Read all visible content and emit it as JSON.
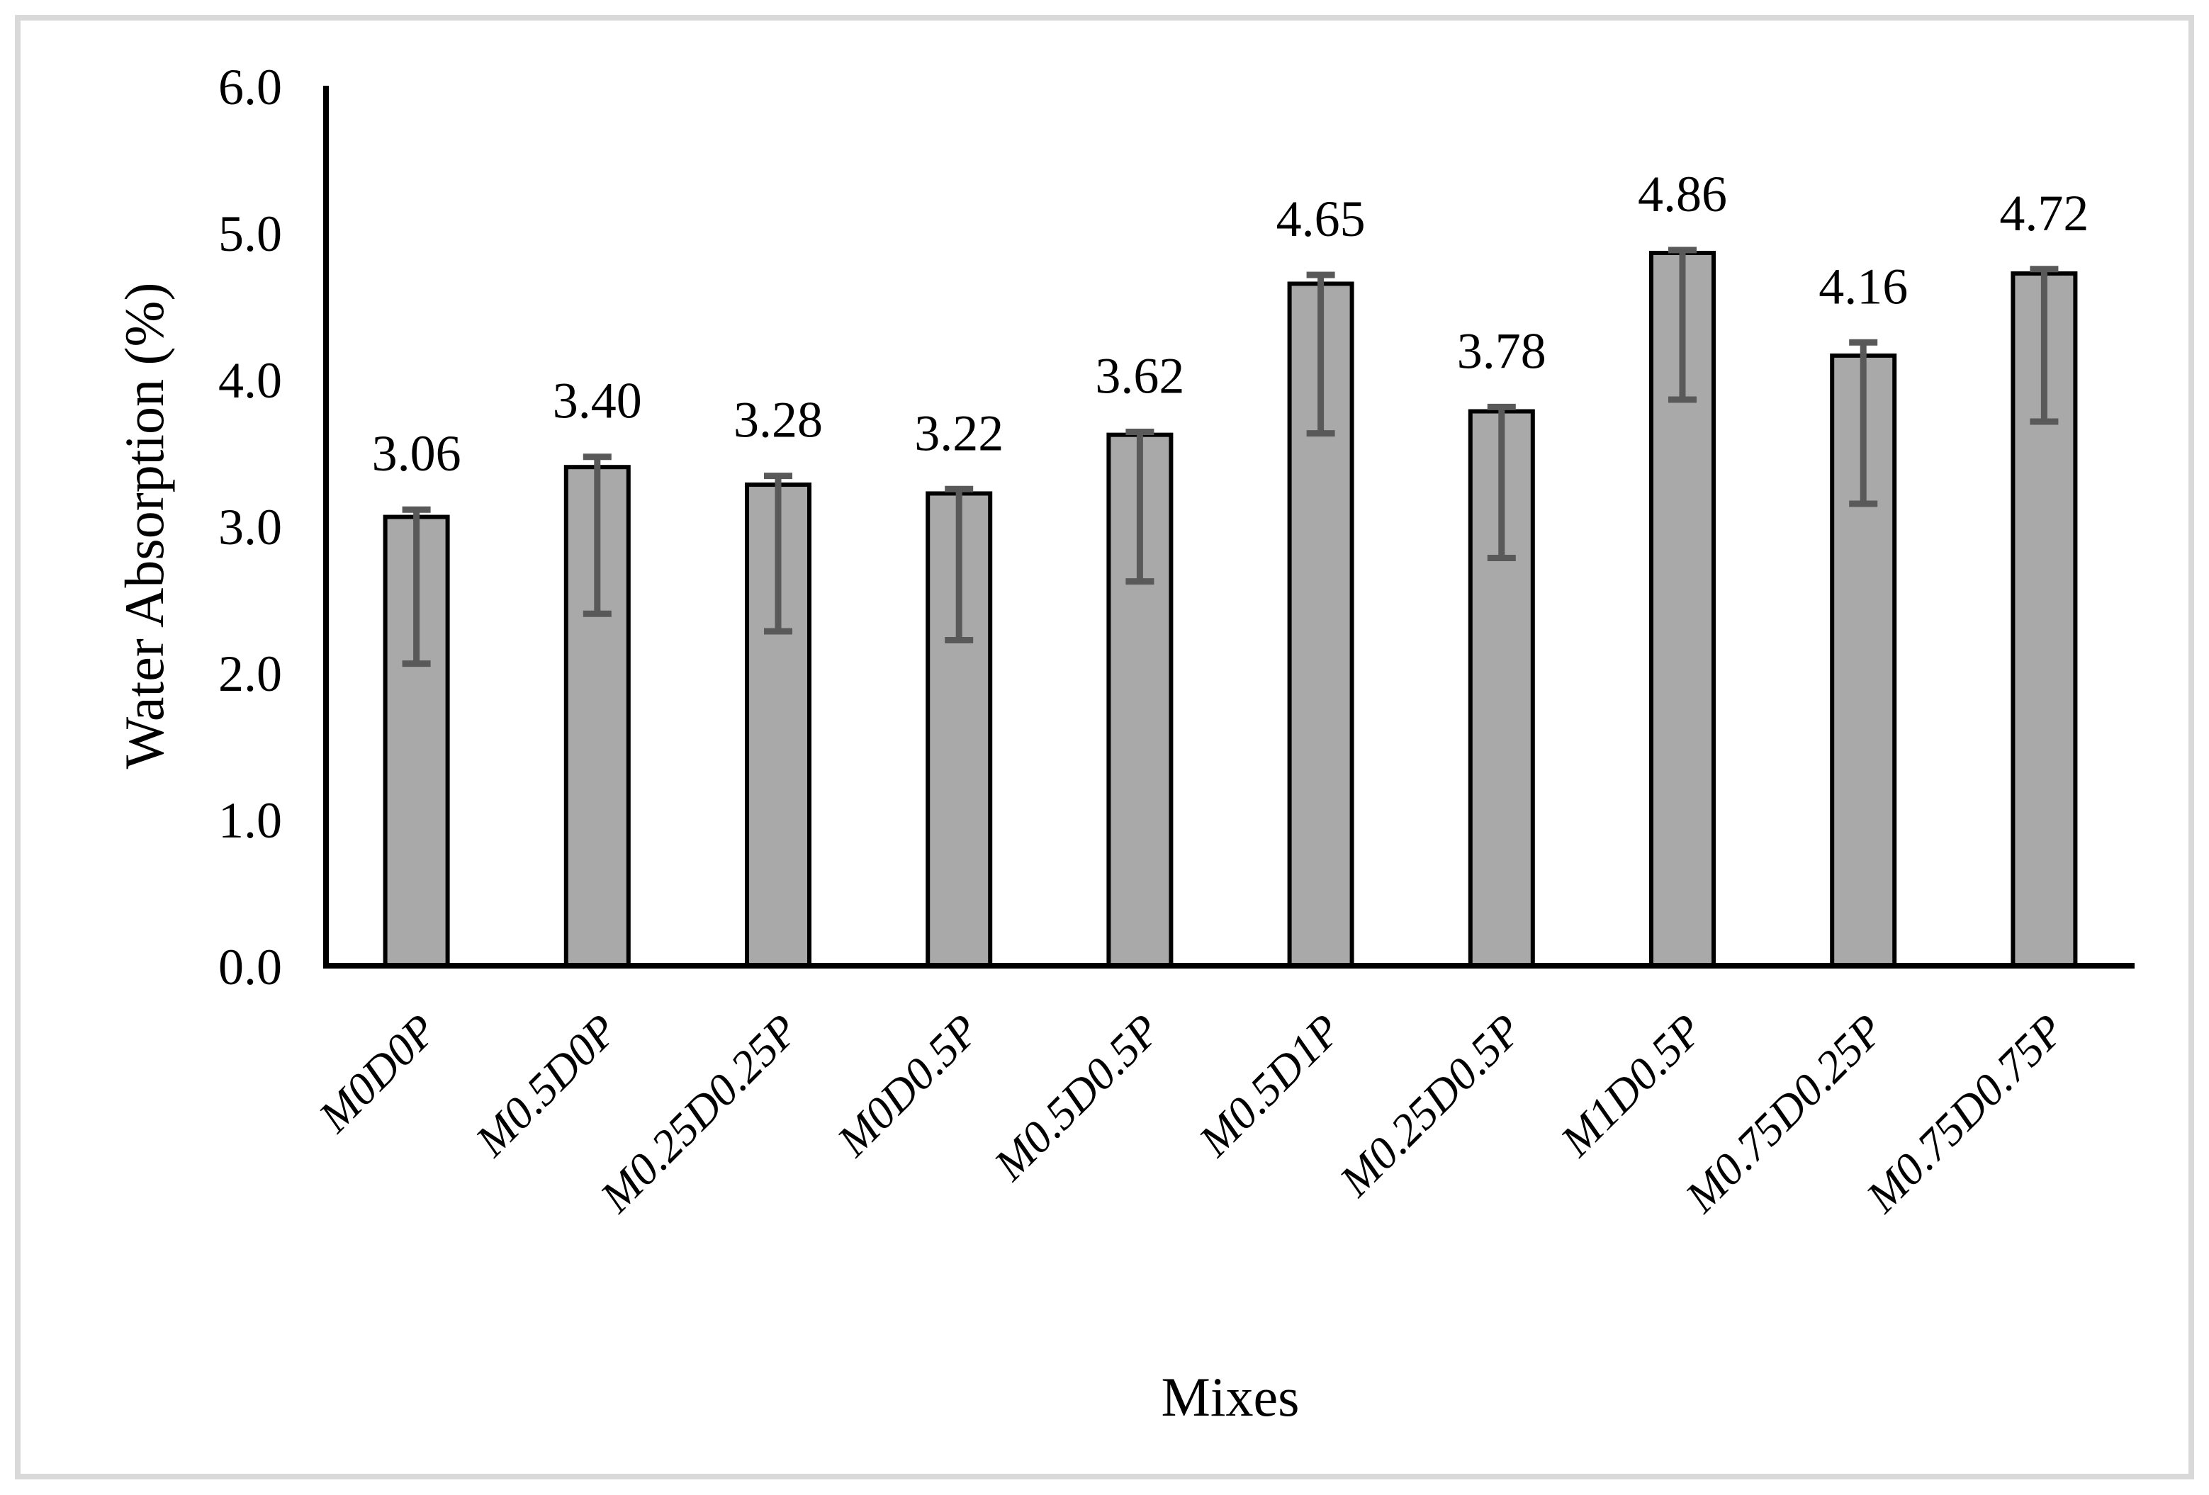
{
  "chart_data": {
    "type": "bar",
    "title": "",
    "xlabel": "Mixes",
    "ylabel": "Water Absorption (%)",
    "categories": [
      "M0D0P",
      "M0.5D0P",
      "M0.25D0.25P",
      "M0D0.5P",
      "M0.5D0.5P",
      "M0.5D1P",
      "M0.25D0.5P",
      "M1D0.5P",
      "M0.75D0.25P",
      "M0.75D0.75P"
    ],
    "values": [
      3.06,
      3.4,
      3.28,
      3.22,
      3.62,
      4.65,
      3.78,
      4.86,
      4.16,
      4.72
    ],
    "data_labels": [
      "3.06",
      "3.40",
      "3.28",
      "3.22",
      "3.62",
      "4.65",
      "3.78",
      "4.86",
      "4.16",
      "4.72"
    ],
    "error_up": [
      0.05,
      0.07,
      0.06,
      0.03,
      0.02,
      0.06,
      0.03,
      0.02,
      0.09,
      0.03
    ],
    "error_down": [
      1.0,
      1.0,
      1.0,
      1.0,
      1.0,
      1.02,
      1.0,
      1.0,
      1.01,
      1.01
    ],
    "ylim": [
      0,
      6
    ],
    "ytick_labels": [
      "0.0",
      "1.0",
      "2.0",
      "3.0",
      "4.0",
      "5.0",
      "6.0"
    ],
    "grid": false,
    "legend": "none",
    "colors": {
      "bar_fill": "#a9a9a9",
      "bar_stroke": "#000000",
      "error_bar": "#595959",
      "axis_line": "#000000",
      "text": "#000000",
      "figure_border": "#d9d9d9",
      "background": "#ffffff"
    }
  }
}
